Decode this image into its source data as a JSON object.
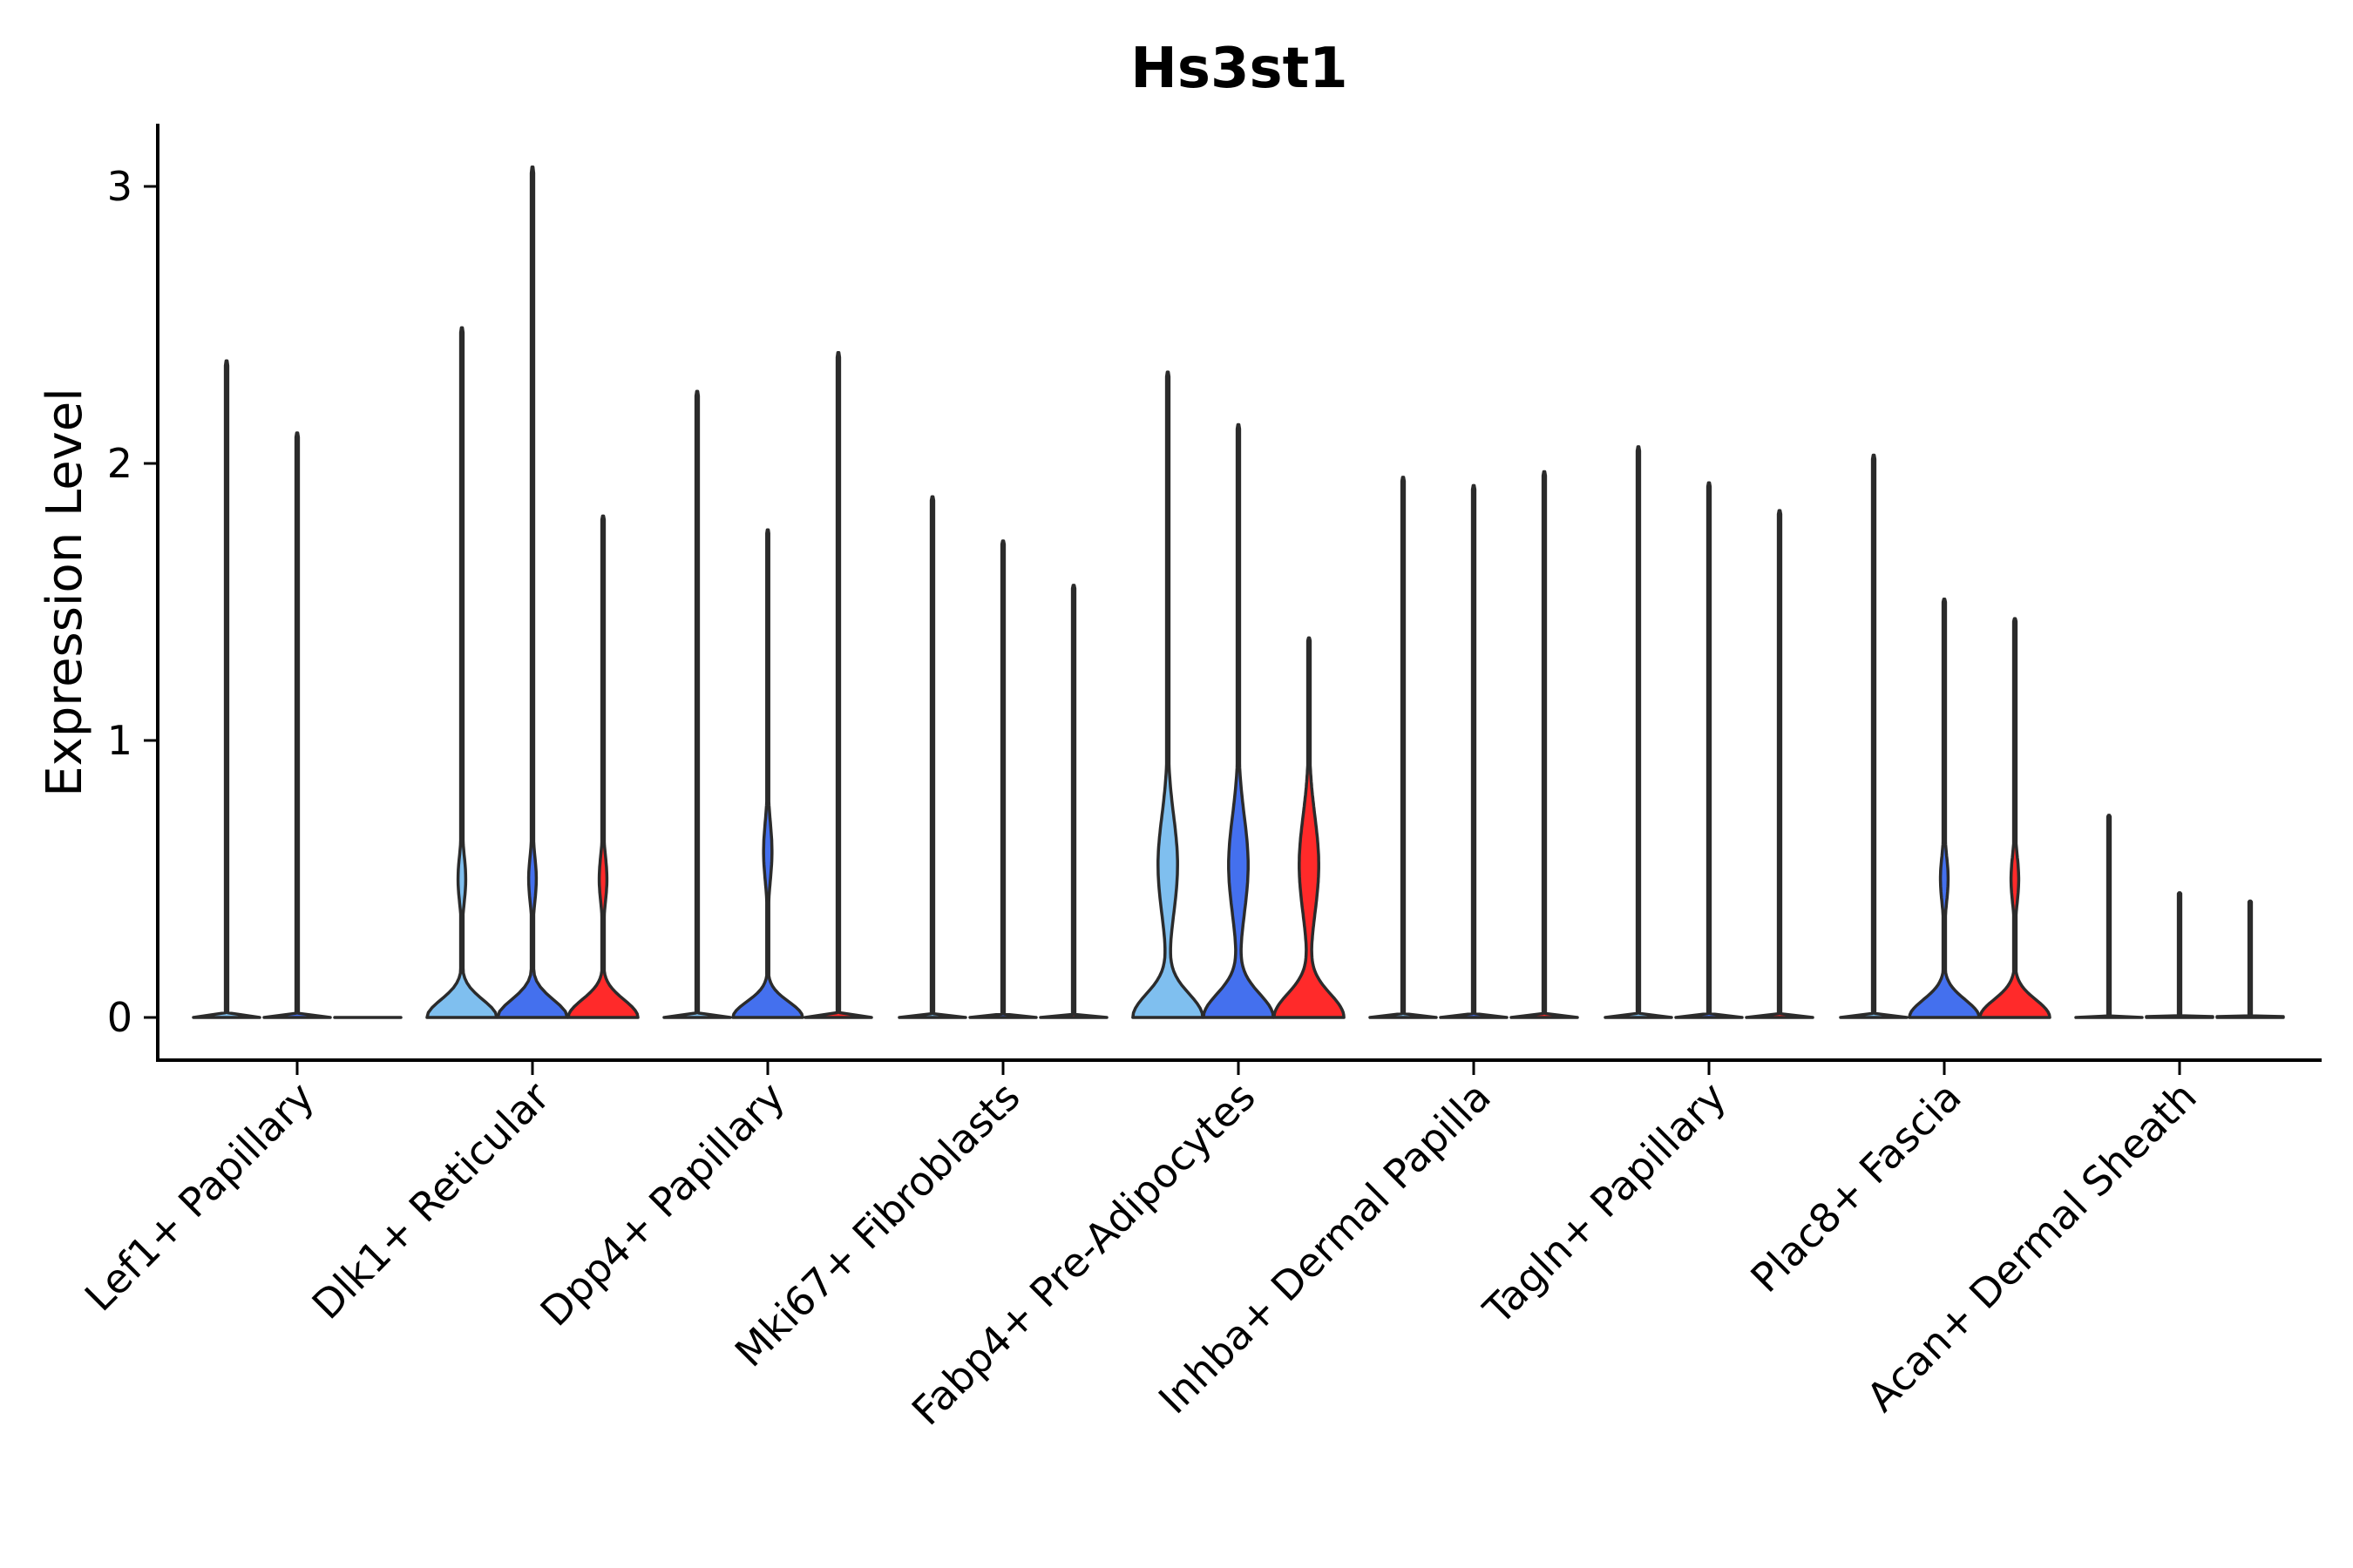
{
  "chart_data": {
    "type": "violin",
    "title": "Hs3st1",
    "xlabel": "",
    "ylabel": "Expression Level",
    "ylim": [
      -0.15,
      3.22
    ],
    "yticks": [
      0,
      1,
      2,
      3
    ],
    "categories": [
      "Lef1+ Papillary",
      "Dlk1+ Reticular",
      "Dpp4+ Papillary",
      "Mki67+ Fibroblasts",
      "Fabp4+ Pre-Adipocytes",
      "Inhba+ Dermal Papilla",
      "Tagln+ Papillary",
      "Plac8+ Fascia",
      "Acan+ Dermal Sheath"
    ],
    "series_colors": [
      "#7fbfef",
      "#4470ee",
      "#ff2a2a"
    ],
    "violins": [
      {
        "category": 0,
        "sub": 0,
        "max": 2.37,
        "profile": "flat"
      },
      {
        "category": 0,
        "sub": 1,
        "max": 2.11,
        "profile": "flat"
      },
      {
        "category": 0,
        "sub": 2,
        "max": 0.0,
        "profile": "flat"
      },
      {
        "category": 1,
        "sub": 0,
        "max": 2.49,
        "profile": "wide"
      },
      {
        "category": 1,
        "sub": 1,
        "max": 3.07,
        "profile": "wide"
      },
      {
        "category": 1,
        "sub": 2,
        "max": 1.81,
        "profile": "wide"
      },
      {
        "category": 2,
        "sub": 0,
        "max": 2.26,
        "profile": "flat"
      },
      {
        "category": 2,
        "sub": 1,
        "max": 1.76,
        "profile": "medium"
      },
      {
        "category": 2,
        "sub": 2,
        "max": 2.4,
        "profile": "flat"
      },
      {
        "category": 3,
        "sub": 0,
        "max": 1.88,
        "profile": "flat"
      },
      {
        "category": 3,
        "sub": 1,
        "max": 1.72,
        "profile": "flat"
      },
      {
        "category": 3,
        "sub": 2,
        "max": 1.56,
        "profile": "flat"
      },
      {
        "category": 4,
        "sub": 0,
        "max": 2.33,
        "profile": "full"
      },
      {
        "category": 4,
        "sub": 1,
        "max": 2.14,
        "profile": "full"
      },
      {
        "category": 4,
        "sub": 2,
        "max": 1.37,
        "profile": "full"
      },
      {
        "category": 5,
        "sub": 0,
        "max": 1.95,
        "profile": "flat"
      },
      {
        "category": 5,
        "sub": 1,
        "max": 1.92,
        "profile": "flat"
      },
      {
        "category": 5,
        "sub": 2,
        "max": 1.97,
        "profile": "flat"
      },
      {
        "category": 6,
        "sub": 0,
        "max": 2.06,
        "profile": "flat"
      },
      {
        "category": 6,
        "sub": 1,
        "max": 1.93,
        "profile": "flat"
      },
      {
        "category": 6,
        "sub": 2,
        "max": 1.83,
        "profile": "flat"
      },
      {
        "category": 7,
        "sub": 0,
        "max": 2.03,
        "profile": "flat"
      },
      {
        "category": 7,
        "sub": 1,
        "max": 1.51,
        "profile": "wide"
      },
      {
        "category": 7,
        "sub": 2,
        "max": 1.44,
        "profile": "wide"
      },
      {
        "category": 8,
        "sub": 0,
        "max": 0.73,
        "profile": "flat"
      },
      {
        "category": 8,
        "sub": 1,
        "max": 0.45,
        "profile": "flat"
      },
      {
        "category": 8,
        "sub": 2,
        "max": 0.42,
        "profile": "flat"
      }
    ]
  }
}
